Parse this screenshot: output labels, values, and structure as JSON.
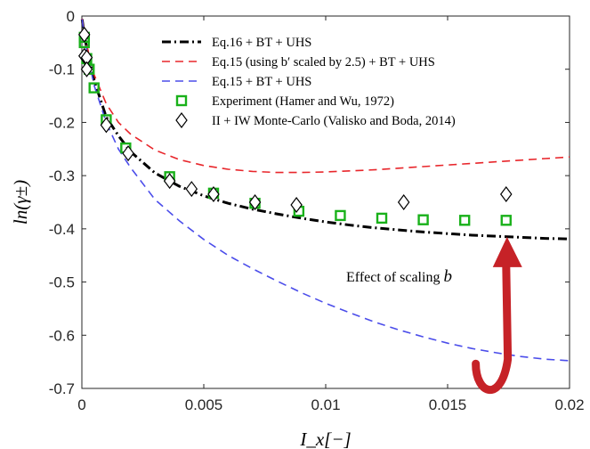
{
  "chart_data": {
    "type": "line",
    "title": "",
    "xlabel": "I_x[−]",
    "ylabel": "ln(γ±)",
    "xlim": [
      0,
      0.02
    ],
    "ylim": [
      -0.7,
      0
    ],
    "xticks": [
      0,
      0.005,
      0.01,
      0.015,
      0.02
    ],
    "xtick_labels": [
      "0",
      "0.005",
      "0.01",
      "0.015",
      "0.02"
    ],
    "yticks": [
      0,
      -0.1,
      -0.2,
      -0.3,
      -0.4,
      -0.5,
      -0.6,
      -0.7
    ],
    "ytick_labels": [
      "0",
      "-0.1",
      "-0.2",
      "-0.3",
      "-0.4",
      "-0.5",
      "-0.6",
      "-0.7"
    ],
    "grid": false,
    "legend_position": "top-right",
    "series": [
      {
        "name": "Eq.16 + BT + UHS",
        "kind": "line",
        "style": "dashdot",
        "color": "#000000",
        "x": [
          1e-05,
          0.0001,
          0.0002,
          0.0005,
          0.001,
          0.0015,
          0.002,
          0.003,
          0.004,
          0.005,
          0.006,
          0.007,
          0.008,
          0.009,
          0.01,
          0.011,
          0.012,
          0.013,
          0.014,
          0.015,
          0.016,
          0.017,
          0.018,
          0.019,
          0.02
        ],
        "y": [
          -0.006,
          -0.035,
          -0.06,
          -0.12,
          -0.19,
          -0.225,
          -0.255,
          -0.295,
          -0.32,
          -0.338,
          -0.352,
          -0.363,
          -0.372,
          -0.38,
          -0.387,
          -0.393,
          -0.398,
          -0.402,
          -0.406,
          -0.409,
          -0.412,
          -0.414,
          -0.416,
          -0.418,
          -0.419
        ]
      },
      {
        "name": "Eq.15 (using b′ scaled by 2.5) + BT + UHS",
        "kind": "line",
        "style": "dashed",
        "color": "#e8262b",
        "x": [
          1e-05,
          0.0001,
          0.0002,
          0.0005,
          0.001,
          0.0015,
          0.002,
          0.003,
          0.004,
          0.005,
          0.006,
          0.007,
          0.008,
          0.009,
          0.01,
          0.011,
          0.012,
          0.013,
          0.014,
          0.015,
          0.016,
          0.017,
          0.018,
          0.019,
          0.02
        ],
        "y": [
          -0.005,
          -0.032,
          -0.055,
          -0.11,
          -0.165,
          -0.2,
          -0.222,
          -0.252,
          -0.27,
          -0.281,
          -0.288,
          -0.292,
          -0.294,
          -0.294,
          -0.293,
          -0.291,
          -0.289,
          -0.286,
          -0.283,
          -0.28,
          -0.277,
          -0.274,
          -0.271,
          -0.268,
          -0.265
        ]
      },
      {
        "name": "Eq.15 + BT + UHS",
        "kind": "line",
        "style": "dashed",
        "color": "#4b4dea",
        "x": [
          1e-05,
          0.0001,
          0.0002,
          0.0005,
          0.001,
          0.0015,
          0.002,
          0.003,
          0.004,
          0.005,
          0.006,
          0.007,
          0.008,
          0.009,
          0.01,
          0.011,
          0.012,
          0.013,
          0.014,
          0.015,
          0.016,
          0.017,
          0.018,
          0.019,
          0.02
        ],
        "y": [
          -0.006,
          -0.036,
          -0.065,
          -0.13,
          -0.2,
          -0.25,
          -0.285,
          -0.345,
          -0.385,
          -0.42,
          -0.45,
          -0.475,
          -0.498,
          -0.52,
          -0.54,
          -0.558,
          -0.575,
          -0.59,
          -0.603,
          -0.615,
          -0.625,
          -0.633,
          -0.64,
          -0.645,
          -0.648
        ]
      },
      {
        "name": "Experiment (Hamer and Wu, 1972)",
        "kind": "marker",
        "marker": "square",
        "color": "#19b11a",
        "x": [
          0.0001,
          0.0001,
          0.0002,
          0.0003,
          0.0005,
          0.001,
          0.0018,
          0.0036,
          0.0054,
          0.0071,
          0.0089,
          0.0106,
          0.0123,
          0.014,
          0.0157,
          0.0174
        ],
        "y": [
          -0.04,
          -0.05,
          -0.08,
          -0.1,
          -0.135,
          -0.195,
          -0.248,
          -0.302,
          -0.333,
          -0.352,
          -0.367,
          -0.375,
          -0.38,
          -0.383,
          -0.384,
          -0.384
        ]
      },
      {
        "name": "II + IW Monte-Carlo (Valisko and Boda, 2014)",
        "kind": "marker",
        "marker": "diamond",
        "color": "#000000",
        "x": [
          0.0001,
          0.0001,
          0.0002,
          0.0002,
          0.001,
          0.0019,
          0.0036,
          0.0045,
          0.0054,
          0.0071,
          0.0088,
          0.0132,
          0.0174
        ],
        "y": [
          -0.035,
          -0.075,
          -0.078,
          -0.1,
          -0.205,
          -0.258,
          -0.31,
          -0.325,
          -0.335,
          -0.35,
          -0.355,
          -0.35,
          -0.335
        ]
      }
    ],
    "annotation": {
      "text_prefix": "Effect of scaling ",
      "text_symbol": "b",
      "arrow_color": "#c62227",
      "arrow_from": [
        0.0163,
        -0.62
      ],
      "arrow_to": [
        0.0174,
        -0.415
      ]
    }
  }
}
